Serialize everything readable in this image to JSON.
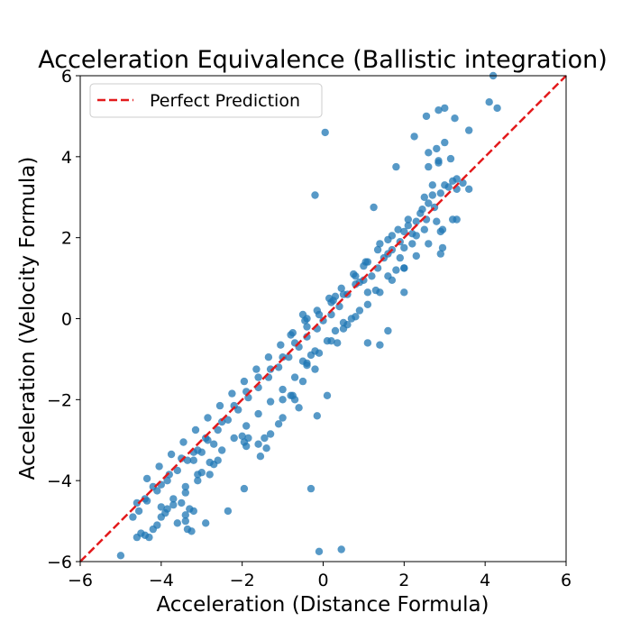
{
  "chart_data": {
    "type": "scatter",
    "title": "Acceleration Equivalence (Ballistic integration)",
    "xlabel": "Acceleration (Distance Formula)",
    "ylabel": "Acceleration (Velocity Formula)",
    "xlim": [
      -6,
      6
    ],
    "ylim": [
      -6,
      6
    ],
    "xticks": [
      "−6",
      "−4",
      "−2",
      "0",
      "2",
      "4",
      "6"
    ],
    "yticks": [
      "−6",
      "−4",
      "−2",
      "0",
      "2",
      "4",
      "6"
    ],
    "grid": false,
    "legend": {
      "position": "top-left",
      "entries": [
        "Perfect Prediction"
      ]
    },
    "colors": {
      "points": "#1f77b4",
      "reference_line": "#e31a1c"
    },
    "series": [
      {
        "kind": "points",
        "points": [
          [
            -5.0,
            -5.85
          ],
          [
            -4.6,
            -5.4
          ],
          [
            -4.5,
            -5.3
          ],
          [
            -4.4,
            -5.35
          ],
          [
            -4.3,
            -5.4
          ],
          [
            -4.2,
            -5.2
          ],
          [
            -4.1,
            -5.1
          ],
          [
            -4.0,
            -4.9
          ],
          [
            -3.9,
            -4.8
          ],
          [
            -3.85,
            -4.7
          ],
          [
            -3.7,
            -4.6
          ],
          [
            -3.5,
            -4.55
          ],
          [
            -3.4,
            -4.3
          ],
          [
            -3.3,
            -4.7
          ],
          [
            -3.2,
            -4.75
          ],
          [
            -3.25,
            -5.25
          ],
          [
            -3.35,
            -5.2
          ],
          [
            -3.4,
            -5.0
          ],
          [
            -3.6,
            -5.05
          ],
          [
            -3.4,
            -4.85
          ],
          [
            -2.9,
            -5.05
          ],
          [
            -2.35,
            -4.75
          ],
          [
            -3.0,
            -3.8
          ],
          [
            -3.1,
            -4.0
          ],
          [
            -2.8,
            -3.85
          ],
          [
            -2.7,
            -3.6
          ],
          [
            -3.0,
            -3.3
          ],
          [
            -2.6,
            -3.5
          ],
          [
            -2.7,
            -3.1
          ],
          [
            -3.2,
            -3.5
          ],
          [
            -1.95,
            -4.2
          ],
          [
            -1.9,
            -3.15
          ],
          [
            -1.85,
            -2.95
          ],
          [
            -1.6,
            -3.1
          ],
          [
            -1.4,
            -3.2
          ],
          [
            -1.3,
            -2.85
          ],
          [
            -1.1,
            -2.6
          ],
          [
            -0.7,
            -2.0
          ],
          [
            -0.6,
            -2.2
          ],
          [
            -0.8,
            -1.9
          ],
          [
            -0.5,
            -1.55
          ],
          [
            -0.4,
            -1.1
          ],
          [
            -0.3,
            -0.9
          ],
          [
            -0.2,
            -0.8
          ],
          [
            0.1,
            -0.55
          ],
          [
            0.3,
            -0.3
          ],
          [
            0.5,
            -0.1
          ],
          [
            0.7,
            0.0
          ],
          [
            0.9,
            0.2
          ],
          [
            1.1,
            0.65
          ],
          [
            1.3,
            0.7
          ],
          [
            1.6,
            1.05
          ],
          [
            1.9,
            1.5
          ],
          [
            2.0,
            1.75
          ],
          [
            2.2,
            1.85
          ],
          [
            2.5,
            2.2
          ],
          [
            2.5,
            3.0
          ],
          [
            2.75,
            2.75
          ],
          [
            2.7,
            3.3
          ],
          [
            2.6,
            3.75
          ],
          [
            2.85,
            3.85
          ],
          [
            3.1,
            3.25
          ],
          [
            3.3,
            3.2
          ],
          [
            3.6,
            3.2
          ],
          [
            3.3,
            2.45
          ],
          [
            2.8,
            2.4
          ],
          [
            2.95,
            2.2
          ],
          [
            2.9,
            1.6
          ],
          [
            2.95,
            1.75
          ],
          [
            2.55,
            2.45
          ],
          [
            2.25,
            4.5
          ],
          [
            2.6,
            4.1
          ],
          [
            2.8,
            4.2
          ],
          [
            2.85,
            3.9
          ],
          [
            3.0,
            4.35
          ],
          [
            3.15,
            3.95
          ],
          [
            2.55,
            5.0
          ],
          [
            2.85,
            5.15
          ],
          [
            3.0,
            5.2
          ],
          [
            3.25,
            4.95
          ],
          [
            3.6,
            4.65
          ],
          [
            4.1,
            5.35
          ],
          [
            4.3,
            5.2
          ],
          [
            4.2,
            6.0
          ],
          [
            1.8,
            3.75
          ],
          [
            1.25,
            2.75
          ],
          [
            -0.2,
            3.05
          ],
          [
            0.05,
            4.6
          ],
          [
            0.45,
            -5.7
          ],
          [
            -0.1,
            -5.75
          ],
          [
            -0.3,
            -4.2
          ],
          [
            -0.15,
            -2.4
          ],
          [
            0.1,
            -1.9
          ],
          [
            -0.75,
            -1.9
          ],
          [
            -1.0,
            -2.0
          ],
          [
            -1.0,
            -2.45
          ],
          [
            -1.45,
            -2.95
          ],
          [
            -2.0,
            -2.9
          ],
          [
            -1.55,
            -3.4
          ],
          [
            -1.95,
            -3.05
          ],
          [
            -0.5,
            -1.05
          ],
          [
            -0.2,
            -1.25
          ],
          [
            0.35,
            -0.6
          ],
          [
            0.6,
            -0.15
          ],
          [
            1.1,
            -0.6
          ],
          [
            1.4,
            -0.65
          ],
          [
            1.6,
            -0.3
          ],
          [
            2.0,
            0.65
          ],
          [
            1.8,
            1.2
          ],
          [
            2.0,
            1.25
          ],
          [
            0.25,
            0.45
          ],
          [
            0.3,
            0.55
          ],
          [
            -0.4,
            0.0
          ],
          [
            -0.8,
            -0.4
          ],
          [
            -0.5,
            0.1
          ],
          [
            0.6,
            0.6
          ],
          [
            0.9,
            0.9
          ],
          [
            1.0,
            1.3
          ],
          [
            1.2,
            1.05
          ],
          [
            1.6,
            1.6
          ],
          [
            2.1,
            2.3
          ],
          [
            2.3,
            2.4
          ],
          [
            2.4,
            2.6
          ],
          [
            2.2,
            2.1
          ],
          [
            1.9,
            1.9
          ],
          [
            1.5,
            1.5
          ],
          [
            1.7,
            1.7
          ],
          [
            1.35,
            1.25
          ],
          [
            1.0,
            0.95
          ],
          [
            0.8,
            0.85
          ],
          [
            0.4,
            0.3
          ],
          [
            0.2,
            0.1
          ],
          [
            0.0,
            -0.05
          ],
          [
            -0.15,
            -0.25
          ],
          [
            -0.4,
            -0.45
          ],
          [
            -0.6,
            -0.7
          ],
          [
            -0.85,
            -0.95
          ],
          [
            -1.1,
            -1.2
          ],
          [
            -1.35,
            -1.45
          ],
          [
            -1.6,
            -1.7
          ],
          [
            -1.85,
            -1.95
          ],
          [
            -2.1,
            -2.25
          ],
          [
            -2.35,
            -2.5
          ],
          [
            -2.6,
            -2.75
          ],
          [
            -2.85,
            -3.0
          ],
          [
            -3.1,
            -3.25
          ],
          [
            -3.35,
            -3.5
          ],
          [
            -3.6,
            -3.75
          ],
          [
            -3.85,
            -4.0
          ],
          [
            -4.1,
            -4.25
          ],
          [
            -4.35,
            -4.5
          ],
          [
            -4.55,
            -4.75
          ],
          [
            -4.7,
            -4.9
          ],
          [
            -4.6,
            -4.55
          ],
          [
            -4.4,
            -4.45
          ],
          [
            -4.2,
            -4.15
          ],
          [
            -4.0,
            -4.1
          ],
          [
            -3.8,
            -3.85
          ],
          [
            -3.5,
            -3.45
          ],
          [
            -3.2,
            -3.3
          ],
          [
            -2.9,
            -2.95
          ],
          [
            -2.5,
            -2.55
          ],
          [
            -2.2,
            -2.15
          ],
          [
            -1.9,
            -1.8
          ],
          [
            -1.6,
            -1.45
          ],
          [
            -1.3,
            -1.25
          ],
          [
            -1.0,
            -0.95
          ],
          [
            -0.7,
            -0.6
          ],
          [
            -0.4,
            -0.2
          ],
          [
            -0.1,
            0.1
          ],
          [
            0.2,
            0.4
          ],
          [
            0.5,
            0.6
          ],
          [
            0.8,
            1.05
          ],
          [
            1.1,
            1.4
          ],
          [
            1.4,
            1.85
          ],
          [
            1.7,
            2.05
          ],
          [
            2.0,
            2.15
          ],
          [
            2.3,
            2.05
          ],
          [
            2.6,
            2.85
          ],
          [
            2.9,
            3.1
          ],
          [
            3.2,
            3.4
          ],
          [
            3.45,
            3.35
          ],
          [
            3.3,
            3.45
          ],
          [
            3.0,
            3.3
          ],
          [
            2.7,
            3.05
          ],
          [
            2.45,
            2.7
          ],
          [
            2.1,
            2.45
          ],
          [
            1.85,
            2.2
          ],
          [
            1.6,
            1.95
          ],
          [
            1.35,
            1.7
          ],
          [
            1.05,
            1.4
          ],
          [
            0.75,
            1.1
          ],
          [
            0.45,
            0.75
          ],
          [
            0.15,
            0.5
          ],
          [
            -0.15,
            0.2
          ],
          [
            -0.45,
            -0.05
          ],
          [
            -0.75,
            -0.35
          ],
          [
            -1.05,
            -0.65
          ],
          [
            -1.35,
            -0.95
          ],
          [
            -1.65,
            -1.25
          ],
          [
            -1.95,
            -1.55
          ],
          [
            -2.25,
            -1.85
          ],
          [
            -2.55,
            -2.15
          ],
          [
            -2.85,
            -2.45
          ],
          [
            -3.15,
            -2.75
          ],
          [
            -3.45,
            -3.05
          ],
          [
            -3.75,
            -3.35
          ],
          [
            -4.05,
            -3.65
          ],
          [
            -4.35,
            -3.95
          ],
          [
            -4.0,
            -4.65
          ],
          [
            -3.7,
            -4.45
          ],
          [
            -3.4,
            -4.15
          ],
          [
            -3.1,
            -3.85
          ],
          [
            -2.8,
            -3.55
          ],
          [
            -2.5,
            -3.25
          ],
          [
            -2.2,
            -2.95
          ],
          [
            -1.9,
            -2.65
          ],
          [
            -1.6,
            -2.35
          ],
          [
            -1.3,
            -2.05
          ],
          [
            -1.0,
            -1.75
          ],
          [
            -0.7,
            -1.45
          ],
          [
            -0.4,
            -1.15
          ],
          [
            -0.1,
            -0.85
          ],
          [
            0.2,
            -0.55
          ],
          [
            0.5,
            -0.25
          ],
          [
            0.8,
            0.05
          ],
          [
            1.1,
            0.35
          ],
          [
            1.4,
            0.65
          ],
          [
            1.7,
            0.95
          ],
          [
            2.0,
            1.25
          ],
          [
            2.3,
            1.55
          ],
          [
            2.6,
            1.85
          ],
          [
            2.9,
            2.15
          ],
          [
            3.2,
            2.45
          ]
        ]
      }
    ],
    "reference_line": {
      "name": "Perfect Prediction",
      "x": [
        -6,
        6
      ],
      "y": [
        -6,
        6
      ]
    }
  }
}
